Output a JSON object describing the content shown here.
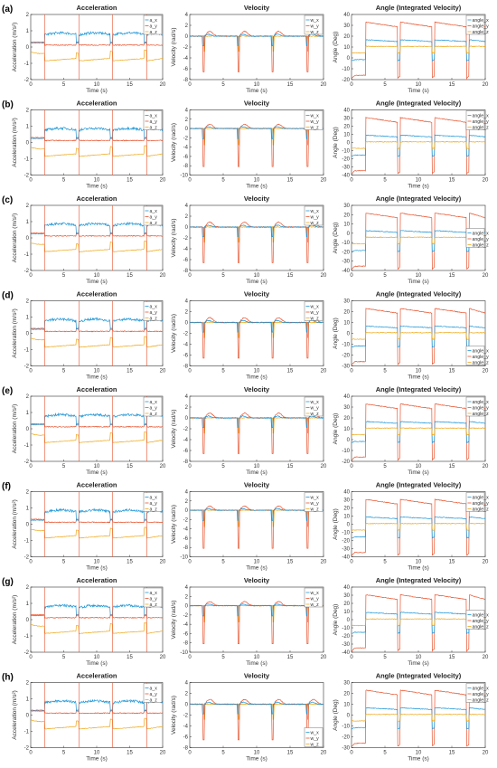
{
  "colors": {
    "x": "#1f96d6",
    "y": "#e8542f",
    "z": "#efa81b",
    "frame": "#333333"
  },
  "chart_data": [
    {
      "type": "line",
      "panel": "(a)",
      "title": "Acceleration",
      "xlabel": "Time (s)",
      "ylabel": "Acceleration (m/s²)",
      "xlim": [
        0,
        20
      ],
      "ylim": [
        -2,
        2
      ],
      "xticks": [
        0,
        5,
        10,
        15,
        20
      ],
      "yticks": [
        -2,
        -1,
        0,
        1,
        2
      ],
      "grid": false,
      "legend_position": "top-right",
      "series": [
        {
          "name": "a_x"
        },
        {
          "name": "a_y"
        },
        {
          "name": "a_z"
        }
      ]
    },
    {
      "type": "line",
      "panel": "(a)",
      "title": "Velocity",
      "xlabel": "Time (s)",
      "ylabel": "Velocity (rad/s)",
      "xlim": [
        0,
        20
      ],
      "ylim": [
        -8,
        4
      ],
      "xticks": [
        0,
        5,
        10,
        15,
        20
      ],
      "yticks": [
        -8,
        -6,
        -4,
        -2,
        0,
        2,
        4
      ],
      "grid": false,
      "legend_position": "top-right",
      "series": [
        {
          "name": "w_x"
        },
        {
          "name": "w_y"
        },
        {
          "name": "w_z"
        }
      ]
    },
    {
      "type": "line",
      "panel": "(a)",
      "title": "Angle (Integrated Velocity)",
      "xlabel": "Time (s)",
      "ylabel": "Angle (Deg)",
      "xlim": [
        0,
        20
      ],
      "ylim": [
        -20,
        40
      ],
      "xticks": [
        0,
        5,
        10,
        15,
        20
      ],
      "yticks": [
        -20,
        -10,
        0,
        10,
        20,
        30,
        40
      ],
      "grid": false,
      "legend_position": "top-right",
      "series": [
        {
          "name": "angle_x"
        },
        {
          "name": "angle_y"
        },
        {
          "name": "angle_z"
        }
      ]
    },
    {
      "type": "line",
      "panel": "(b)",
      "title": "Acceleration",
      "xlabel": "Time (s)",
      "ylabel": "Acceleration (m/s²)",
      "xlim": [
        0,
        20
      ],
      "ylim": [
        -2,
        2
      ],
      "xticks": [
        0,
        5,
        10,
        15,
        20
      ],
      "yticks": [
        -2,
        -1,
        0,
        1,
        2
      ],
      "grid": false,
      "legend_position": "top-right",
      "series": [
        {
          "name": "a_x"
        },
        {
          "name": "a_y"
        },
        {
          "name": "a_z"
        }
      ]
    },
    {
      "type": "line",
      "panel": "(b)",
      "title": "Velocity",
      "xlabel": "Time (s)",
      "ylabel": "Velocity (rad/s)",
      "xlim": [
        0,
        20
      ],
      "ylim": [
        -10,
        4
      ],
      "xticks": [
        0,
        5,
        10,
        15,
        20
      ],
      "yticks": [
        -10,
        -8,
        -6,
        -4,
        -2,
        0,
        2,
        4
      ],
      "grid": false,
      "legend_position": "top-right",
      "series": [
        {
          "name": "w_x"
        },
        {
          "name": "w_y"
        },
        {
          "name": "w_z"
        }
      ]
    },
    {
      "type": "line",
      "panel": "(b)",
      "title": "Angle (Integrated Velocity)",
      "xlabel": "Time (s)",
      "ylabel": "Angle (Deg)",
      "xlim": [
        0,
        20
      ],
      "ylim": [
        -40,
        40
      ],
      "xticks": [
        0,
        5,
        10,
        15,
        20
      ],
      "yticks": [
        -40,
        -30,
        -20,
        -10,
        0,
        10,
        20,
        30,
        40
      ],
      "grid": false,
      "legend_position": "top-right",
      "series": [
        {
          "name": "angle_x"
        },
        {
          "name": "angle_y"
        },
        {
          "name": "angle_z"
        }
      ]
    },
    {
      "type": "line",
      "panel": "(c)",
      "title": "Acceleration",
      "xlabel": "Time (s)",
      "ylabel": "Acceleration (m/s²)",
      "xlim": [
        0,
        20
      ],
      "ylim": [
        -2,
        2
      ],
      "xticks": [
        0,
        5,
        10,
        15,
        20
      ],
      "yticks": [
        -2,
        -1,
        0,
        1,
        2
      ],
      "grid": false,
      "legend_position": "top-right",
      "series": [
        {
          "name": "a_x"
        },
        {
          "name": "a_y"
        },
        {
          "name": "a_z"
        }
      ]
    },
    {
      "type": "line",
      "panel": "(c)",
      "title": "Velocity",
      "xlabel": "Time (s)",
      "ylabel": "Velocity (rad/s)",
      "xlim": [
        0,
        20
      ],
      "ylim": [
        -8,
        4
      ],
      "xticks": [
        0,
        5,
        10,
        15,
        20
      ],
      "yticks": [
        -8,
        -6,
        -4,
        -2,
        0,
        2,
        4
      ],
      "grid": false,
      "legend_position": "top-right",
      "series": [
        {
          "name": "w_x"
        },
        {
          "name": "w_y"
        },
        {
          "name": "w_z"
        }
      ]
    },
    {
      "type": "line",
      "panel": "(c)",
      "title": "Angle (Integrated Velocity)",
      "xlabel": "Time (s)",
      "ylabel": "Angle (Deg)",
      "xlim": [
        0,
        20
      ],
      "ylim": [
        -40,
        30
      ],
      "xticks": [
        0,
        5,
        10,
        15,
        20
      ],
      "yticks": [
        -40,
        -30,
        -20,
        -10,
        0,
        10,
        20,
        30
      ],
      "grid": false,
      "legend_position": "right",
      "series": [
        {
          "name": "angle_x"
        },
        {
          "name": "angle_y"
        },
        {
          "name": "angle_z"
        }
      ]
    },
    {
      "type": "line",
      "panel": "(d)",
      "title": "Acceleration",
      "xlabel": "Time (s)",
      "ylabel": "Acceleration (m/s²)",
      "xlim": [
        0,
        20
      ],
      "ylim": [
        -2,
        2
      ],
      "xticks": [
        0,
        5,
        10,
        15,
        20
      ],
      "yticks": [
        -2,
        -1,
        0,
        1,
        2
      ],
      "grid": false,
      "legend_position": "top-right",
      "series": [
        {
          "name": "a_x"
        },
        {
          "name": "a_y"
        },
        {
          "name": "a_z"
        }
      ]
    },
    {
      "type": "line",
      "panel": "(d)",
      "title": "Velocity",
      "xlabel": "Time (s)",
      "ylabel": "Velocity (rad/s)",
      "xlim": [
        0,
        20
      ],
      "ylim": [
        -8,
        4
      ],
      "xticks": [
        0,
        5,
        10,
        15,
        20
      ],
      "yticks": [
        -8,
        -6,
        -4,
        -2,
        0,
        2,
        4
      ],
      "grid": false,
      "legend_position": "top-right",
      "series": [
        {
          "name": "w_x"
        },
        {
          "name": "w_y"
        },
        {
          "name": "w_z"
        }
      ]
    },
    {
      "type": "line",
      "panel": "(d)",
      "title": "Angle (Integrated Velocity)",
      "xlabel": "Time (s)",
      "ylabel": "Angle (Deg)",
      "xlim": [
        0,
        20
      ],
      "ylim": [
        -30,
        30
      ],
      "xticks": [
        0,
        5,
        10,
        15,
        20
      ],
      "yticks": [
        -30,
        -20,
        -10,
        0,
        10,
        20,
        30
      ],
      "grid": false,
      "legend_position": "bottom-right",
      "series": [
        {
          "name": "angle_x"
        },
        {
          "name": "angle_y"
        },
        {
          "name": "angle_z"
        }
      ]
    },
    {
      "type": "line",
      "panel": "(e)",
      "title": "Acceleration",
      "xlabel": "Time (s)",
      "ylabel": "Acceleration (m/s²)",
      "xlim": [
        0,
        20
      ],
      "ylim": [
        -2,
        2
      ],
      "xticks": [
        0,
        5,
        10,
        15,
        20
      ],
      "yticks": [
        -2,
        -1,
        0,
        1,
        2
      ],
      "grid": false,
      "legend_position": "top-right",
      "series": [
        {
          "name": "a_x"
        },
        {
          "name": "a_y"
        },
        {
          "name": "a_z"
        }
      ]
    },
    {
      "type": "line",
      "panel": "(e)",
      "title": "Velocity",
      "xlabel": "Time (s)",
      "ylabel": "Velocity (rad/s)",
      "xlim": [
        0,
        20
      ],
      "ylim": [
        -8,
        4
      ],
      "xticks": [
        0,
        5,
        10,
        15,
        20
      ],
      "yticks": [
        -8,
        -6,
        -4,
        -2,
        0,
        2,
        4
      ],
      "grid": false,
      "legend_position": "top-right",
      "series": [
        {
          "name": "w_x"
        },
        {
          "name": "w_y"
        },
        {
          "name": "w_z"
        }
      ]
    },
    {
      "type": "line",
      "panel": "(e)",
      "title": "Angle (Integrated Velocity)",
      "xlabel": "Time (s)",
      "ylabel": "Angle (Deg)",
      "xlim": [
        0,
        20
      ],
      "ylim": [
        -20,
        40
      ],
      "xticks": [
        0,
        5,
        10,
        15,
        20
      ],
      "yticks": [
        -20,
        -10,
        0,
        10,
        20,
        30,
        40
      ],
      "grid": false,
      "legend_position": "top-right",
      "series": [
        {
          "name": "angle_x"
        },
        {
          "name": "angle_y"
        },
        {
          "name": "angle_z"
        }
      ]
    },
    {
      "type": "line",
      "panel": "(f)",
      "title": "Acceleration",
      "xlabel": "Time (s)",
      "ylabel": "Acceleration (m/s²)",
      "xlim": [
        0,
        20
      ],
      "ylim": [
        -2,
        2
      ],
      "xticks": [
        0,
        5,
        10,
        15,
        20
      ],
      "yticks": [
        -2,
        -1,
        0,
        1,
        2
      ],
      "grid": false,
      "legend_position": "top-right",
      "series": [
        {
          "name": "a_x"
        },
        {
          "name": "a_y"
        },
        {
          "name": "a_z"
        }
      ]
    },
    {
      "type": "line",
      "panel": "(f)",
      "title": "Velocity",
      "xlabel": "Time (s)",
      "ylabel": "Velocity (rad/s)",
      "xlim": [
        0,
        20
      ],
      "ylim": [
        -10,
        4
      ],
      "xticks": [
        0,
        5,
        10,
        15,
        20
      ],
      "yticks": [
        -10,
        -8,
        -6,
        -4,
        -2,
        0,
        2,
        4
      ],
      "grid": false,
      "legend_position": "top-right",
      "series": [
        {
          "name": "w_x"
        },
        {
          "name": "w_y"
        },
        {
          "name": "w_z"
        }
      ]
    },
    {
      "type": "line",
      "panel": "(f)",
      "title": "Angle (Integrated Velocity)",
      "xlabel": "Time (s)",
      "ylabel": "Angle (Deg)",
      "xlim": [
        0,
        20
      ],
      "ylim": [
        -40,
        40
      ],
      "xticks": [
        0,
        5,
        10,
        15,
        20
      ],
      "yticks": [
        -40,
        -30,
        -20,
        -10,
        0,
        10,
        20,
        30,
        40
      ],
      "grid": false,
      "legend_position": "top-right",
      "series": [
        {
          "name": "angle_x"
        },
        {
          "name": "angle_y"
        },
        {
          "name": "angle_z"
        }
      ]
    },
    {
      "type": "line",
      "panel": "(g)",
      "title": "Acceleration",
      "xlabel": "Time (s)",
      "ylabel": "Acceleration (m/s²)",
      "xlim": [
        0,
        20
      ],
      "ylim": [
        -2,
        2
      ],
      "xticks": [
        0,
        5,
        10,
        15,
        20
      ],
      "yticks": [
        -2,
        -1,
        0,
        1,
        2
      ],
      "grid": false,
      "legend_position": "top-right",
      "series": [
        {
          "name": "a_x"
        },
        {
          "name": "a_y"
        },
        {
          "name": "a_z"
        }
      ]
    },
    {
      "type": "line",
      "panel": "(g)",
      "title": "Velocity",
      "xlabel": "Time (s)",
      "ylabel": "Velocity (rad/s)",
      "xlim": [
        0,
        20
      ],
      "ylim": [
        -10,
        4
      ],
      "xticks": [
        0,
        5,
        10,
        15,
        20
      ],
      "yticks": [
        -10,
        -8,
        -6,
        -4,
        -2,
        0,
        2,
        4
      ],
      "grid": false,
      "legend_position": "top-right",
      "series": [
        {
          "name": "w_x"
        },
        {
          "name": "w_y"
        },
        {
          "name": "w_z"
        }
      ]
    },
    {
      "type": "line",
      "panel": "(g)",
      "title": "Angle (Integrated Velocity)",
      "xlabel": "Time (s)",
      "ylabel": "Angle (Deg)",
      "xlim": [
        0,
        20
      ],
      "ylim": [
        -40,
        40
      ],
      "xticks": [
        0,
        5,
        10,
        15,
        20
      ],
      "yticks": [
        -40,
        -30,
        -20,
        -10,
        0,
        10,
        20,
        30,
        40
      ],
      "grid": false,
      "legend_position": "right",
      "series": [
        {
          "name": "angle_x"
        },
        {
          "name": "angle_y"
        },
        {
          "name": "angle_z"
        }
      ]
    },
    {
      "type": "line",
      "panel": "(h)",
      "title": "Acceleration",
      "xlabel": "Time (s)",
      "ylabel": "Acceleration (m/s²)",
      "xlim": [
        0,
        20
      ],
      "ylim": [
        -2,
        2
      ],
      "xticks": [
        0,
        5,
        10,
        15,
        20
      ],
      "yticks": [
        -2,
        -1,
        0,
        1,
        2
      ],
      "grid": false,
      "legend_position": "top-right",
      "series": [
        {
          "name": "a_x"
        },
        {
          "name": "a_y"
        },
        {
          "name": "a_z"
        }
      ]
    },
    {
      "type": "line",
      "panel": "(h)",
      "title": "Velocity",
      "xlabel": "Time (s)",
      "ylabel": "Velocity (rad/s)",
      "xlim": [
        0,
        20
      ],
      "ylim": [
        -8,
        4
      ],
      "xticks": [
        0,
        5,
        10,
        15,
        20
      ],
      "yticks": [
        -8,
        -6,
        -4,
        -2,
        0,
        2,
        4
      ],
      "grid": false,
      "legend_position": "bottom-right",
      "series": [
        {
          "name": "w_x"
        },
        {
          "name": "w_y"
        },
        {
          "name": "w_z"
        }
      ]
    },
    {
      "type": "line",
      "panel": "(h)",
      "title": "Angle (Integrated Velocity)",
      "xlabel": "Time (s)",
      "ylabel": "Angle (Deg)",
      "xlim": [
        0,
        20
      ],
      "ylim": [
        -30,
        30
      ],
      "xticks": [
        0,
        5,
        10,
        15,
        20
      ],
      "yticks": [
        -30,
        -20,
        -10,
        0,
        10,
        20,
        30
      ],
      "grid": false,
      "legend_position": "top-right",
      "series": [
        {
          "name": "angle_x"
        },
        {
          "name": "angle_y"
        },
        {
          "name": "angle_z"
        }
      ]
    }
  ]
}
